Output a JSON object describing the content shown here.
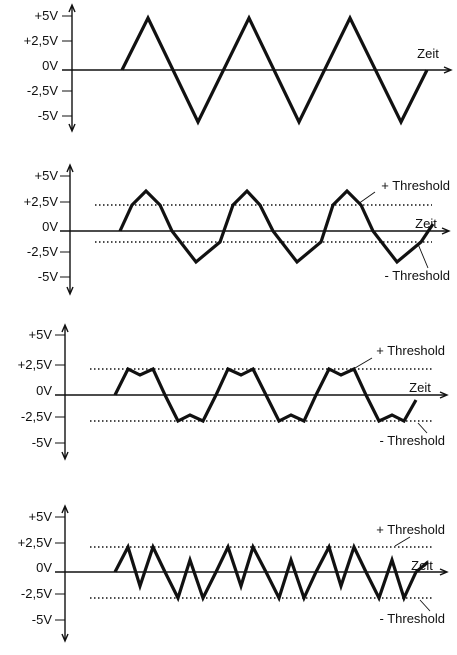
{
  "panels": [
    {
      "id": "panel-1",
      "y_labels": [
        "+5V",
        "+2,5V",
        "0V",
        "-2,5V",
        "-5V"
      ],
      "axis_label": "Zeit",
      "threshold_upper_label": "",
      "threshold_lower_label": "",
      "has_thresholds": false
    },
    {
      "id": "panel-2",
      "y_labels": [
        "+5V",
        "+2,5V",
        "0V",
        "-2,5V",
        "-5V"
      ],
      "axis_label": "Zeit",
      "threshold_upper_label": "+ Threshold",
      "threshold_lower_label": "- Threshold",
      "has_thresholds": true
    },
    {
      "id": "panel-3",
      "y_labels": [
        "+5V",
        "+2,5V",
        "0V",
        "-2,5V",
        "-5V"
      ],
      "axis_label": "Zeit",
      "threshold_upper_label": "+ Threshold",
      "threshold_lower_label": "- Threshold",
      "has_thresholds": true
    },
    {
      "id": "panel-4",
      "y_labels": [
        "+5V",
        "+2,5V",
        "0V",
        "-2,5V",
        "-5V"
      ],
      "axis_label": "Zeit",
      "threshold_upper_label": "+ Threshold",
      "threshold_lower_label": "- Threshold",
      "has_thresholds": true
    }
  ]
}
